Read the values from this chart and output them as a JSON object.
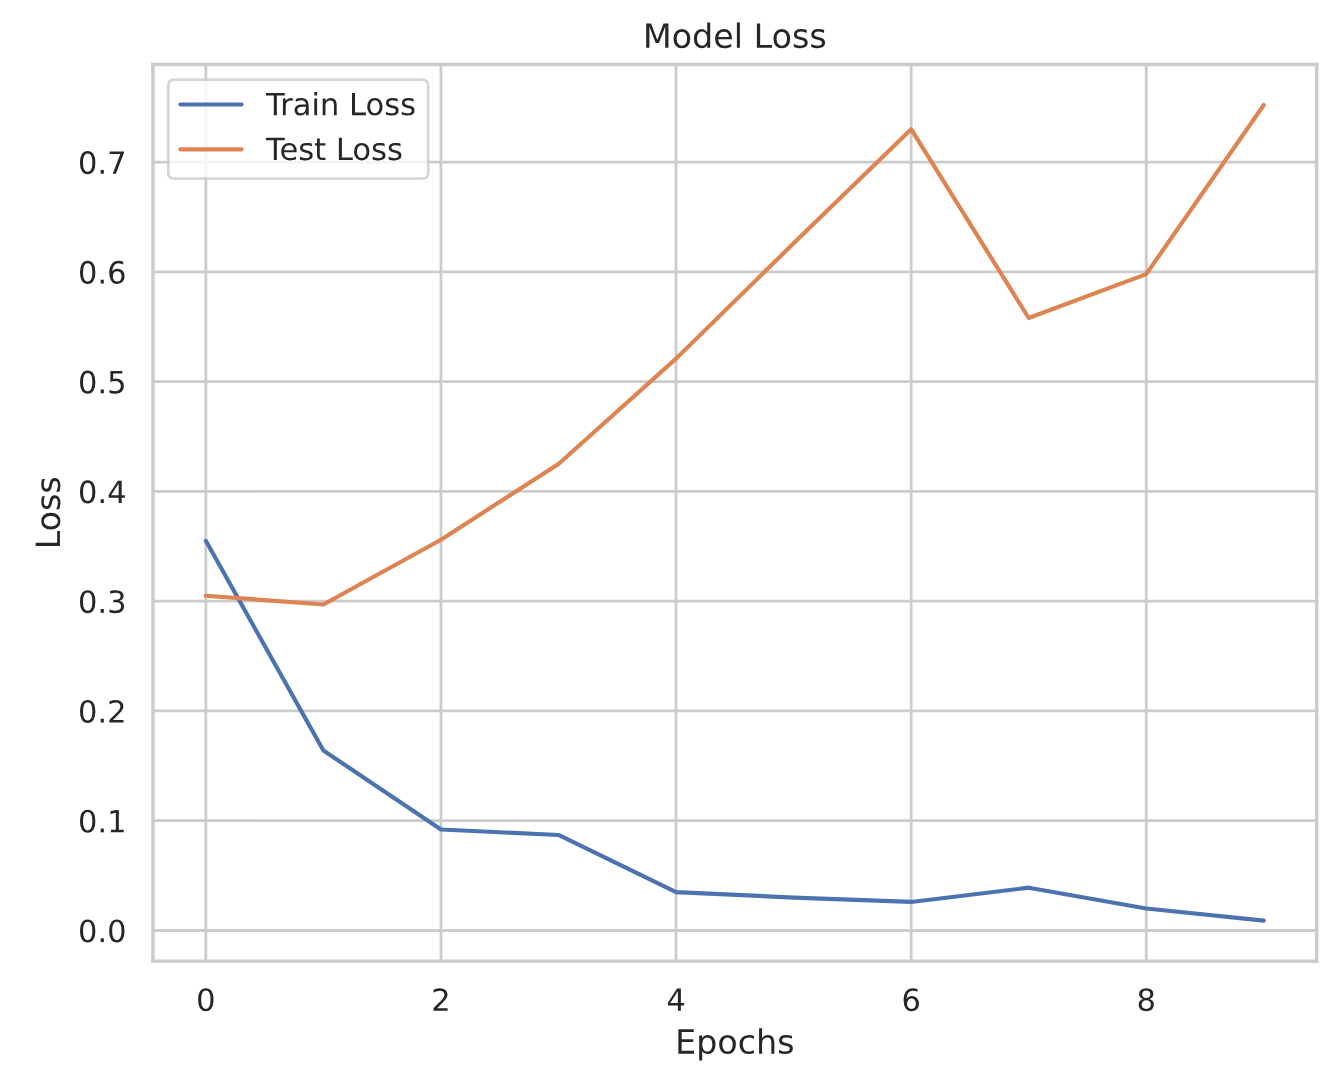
{
  "chart_data": {
    "type": "line",
    "title": "Model Loss",
    "xlabel": "Epochs",
    "ylabel": "Loss",
    "x": [
      0,
      1,
      2,
      3,
      4,
      5,
      6,
      7,
      8,
      9
    ],
    "series": [
      {
        "name": "Train Loss",
        "color": "#4c72b0",
        "values": [
          0.355,
          0.164,
          0.092,
          0.087,
          0.035,
          0.03,
          0.026,
          0.039,
          0.02,
          0.009
        ]
      },
      {
        "name": "Test Loss",
        "color": "#dd8452",
        "values": [
          0.305,
          0.297,
          0.356,
          0.425,
          0.521,
          0.626,
          0.73,
          0.558,
          0.598,
          0.752
        ]
      }
    ],
    "xlim": [
      -0.45,
      9.45
    ],
    "ylim": [
      -0.028,
      0.789
    ],
    "xticks": [
      0,
      2,
      4,
      6,
      8
    ],
    "yticks": [
      {
        "value": 0,
        "label": "0.0"
      },
      0.1,
      0.2,
      0.3,
      0.4,
      0.5,
      0.6,
      0.7
    ],
    "grid": true,
    "legend": "top left",
    "marker": "none",
    "line_style": "solid"
  }
}
